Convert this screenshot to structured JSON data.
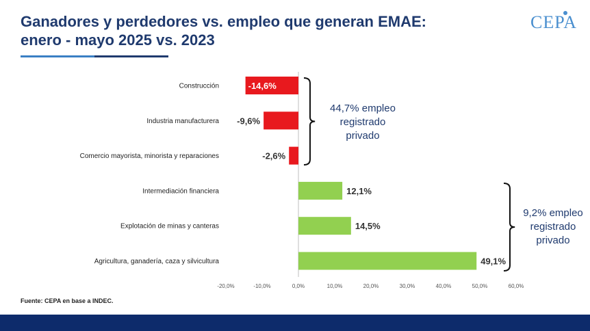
{
  "title": "Ganadores y perdedores vs. empleo que generan EMAE: enero - mayo 2025 vs. 2023",
  "logo": "CEPA",
  "source": "Fuente: CEPA en base a INDEC.",
  "colors": {
    "negative": "#e8191e",
    "positive": "#92d050",
    "title": "#1f3a6e",
    "footer": "#0d2b6b"
  },
  "annotations": [
    {
      "lines": [
        "44,7% empleo",
        "registrado",
        "privado"
      ]
    },
    {
      "lines": [
        "9,2% empleo",
        "registrado",
        "privado"
      ]
    }
  ],
  "chart_data": {
    "type": "bar",
    "orientation": "horizontal",
    "categories": [
      "Construcción",
      "Industria manufacturera",
      "Comercio mayorista, minorista y reparaciones",
      "Intermediación financiera",
      "Explotación de minas y canteras",
      "Agricultura, ganadería, caza y silvicultura"
    ],
    "values": [
      -14.6,
      -9.6,
      -2.6,
      12.1,
      14.5,
      49.1
    ],
    "value_labels": [
      "-14,6%",
      "-9,6%",
      "-2,6%",
      "12,1%",
      "14,5%",
      "49,1%"
    ],
    "xlim": [
      -20,
      60
    ],
    "xticks": [
      -20,
      -10,
      0,
      10,
      20,
      30,
      40,
      50,
      60
    ],
    "xtick_labels": [
      "-20,0%",
      "-10,0%",
      "0,0%",
      "10,0%",
      "20,0%",
      "30,0%",
      "40,0%",
      "50,0%",
      "60,0%"
    ],
    "grid": false,
    "legend": "none"
  }
}
